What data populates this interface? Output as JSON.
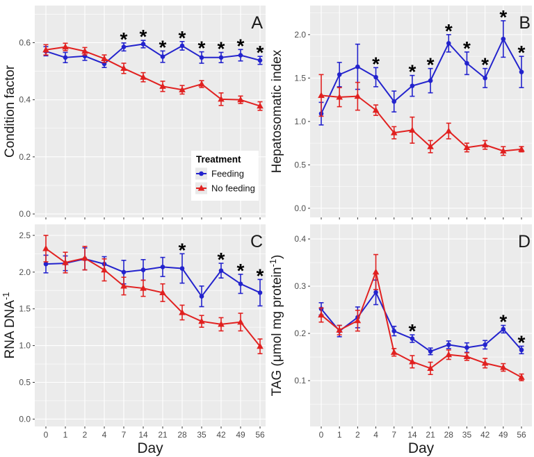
{
  "figure": {
    "background": "#ffffff",
    "panel_background": "#EBEBEB",
    "gridline_color": "#FFFFFF",
    "tick_color": "#333333",
    "tick_label_color": "#4D4D4D",
    "text_color": "#1A1A1A",
    "significance_marker": "*",
    "x_axis": {
      "label": "Day",
      "categories": [
        "0",
        "1",
        "2",
        "4",
        "7",
        "14",
        "21",
        "28",
        "35",
        "42",
        "49",
        "56"
      ]
    },
    "legend": {
      "title": "Treatment",
      "location": "inside panel A, lower right",
      "entries": [
        {
          "label": "Feeding",
          "color": "#2323CD",
          "marker": "circle"
        },
        {
          "label": "No feeding",
          "color": "#E12120",
          "marker": "triangle"
        }
      ]
    }
  },
  "chart_data": [
    {
      "type": "line",
      "panel_label": "A",
      "ylabel": "Condition factor",
      "xlabel": "Day",
      "x_categories": [
        "0",
        "1",
        "2",
        "4",
        "7",
        "14",
        "21",
        "28",
        "35",
        "42",
        "49",
        "56"
      ],
      "ylim": [
        -0.012,
        0.73
      ],
      "yticks": [
        0.0,
        0.2,
        0.4,
        0.6
      ],
      "ytick_labels": [
        "0.0",
        "0.2",
        "0.4",
        "0.6"
      ],
      "yminor": [
        0.1,
        0.3,
        0.5,
        0.7
      ],
      "grid": true,
      "series": [
        {
          "name": "Feeding",
          "values": [
            0.57,
            0.548,
            0.553,
            0.526,
            0.585,
            0.595,
            0.551,
            0.589,
            0.548,
            0.548,
            0.556,
            0.538
          ],
          "errors": [
            0.016,
            0.018,
            0.015,
            0.013,
            0.014,
            0.013,
            0.02,
            0.015,
            0.02,
            0.018,
            0.02,
            0.014
          ]
        },
        {
          "name": "No feeding",
          "values": [
            0.575,
            0.585,
            0.57,
            0.544,
            0.51,
            0.479,
            0.447,
            0.435,
            0.455,
            0.402,
            0.4,
            0.378
          ],
          "errors": [
            0.018,
            0.013,
            0.013,
            0.013,
            0.018,
            0.016,
            0.018,
            0.015,
            0.012,
            0.022,
            0.013,
            0.015
          ]
        }
      ],
      "significant_days": [
        "7",
        "14",
        "21",
        "28",
        "35",
        "42",
        "49",
        "56"
      ]
    },
    {
      "type": "line",
      "panel_label": "B",
      "ylabel": "Hepatosomatic index",
      "xlabel": "Day",
      "x_categories": [
        "0",
        "1",
        "2",
        "4",
        "7",
        "14",
        "21",
        "28",
        "35",
        "42",
        "49",
        "56"
      ],
      "ylim": [
        -0.105,
        2.335
      ],
      "yticks": [
        0.0,
        0.5,
        1.0,
        1.5,
        2.0
      ],
      "ytick_labels": [
        "0.0",
        "0.5",
        "1.0",
        "1.5",
        "2.0"
      ],
      "yminor": [
        0.25,
        0.75,
        1.25,
        1.75,
        2.25
      ],
      "grid": true,
      "series": [
        {
          "name": "Feeding",
          "values": [
            1.09,
            1.54,
            1.63,
            1.51,
            1.23,
            1.41,
            1.47,
            1.9,
            1.67,
            1.5,
            1.95,
            1.57
          ],
          "errors": [
            0.13,
            0.14,
            0.26,
            0.11,
            0.12,
            0.12,
            0.14,
            0.1,
            0.13,
            0.11,
            0.21,
            0.18
          ]
        },
        {
          "name": "No feeding",
          "values": [
            1.3,
            1.28,
            1.29,
            1.13,
            0.87,
            0.9,
            0.71,
            0.89,
            0.7,
            0.73,
            0.66,
            0.68
          ],
          "errors": [
            0.24,
            0.11,
            0.16,
            0.06,
            0.07,
            0.15,
            0.07,
            0.09,
            0.05,
            0.05,
            0.05,
            0.03
          ]
        }
      ],
      "significant_days": [
        "4",
        "14",
        "21",
        "28",
        "35",
        "42",
        "49",
        "56"
      ]
    },
    {
      "type": "line",
      "panel_label": "C",
      "ylabel": "RNA DNA⁻¹",
      "xlabel": "Day",
      "x_categories": [
        "0",
        "1",
        "2",
        "4",
        "7",
        "14",
        "21",
        "28",
        "35",
        "42",
        "49",
        "56"
      ],
      "ylim": [
        -0.1,
        2.65
      ],
      "yticks": [
        0.0,
        0.5,
        1.0,
        1.5,
        2.0,
        2.5
      ],
      "ytick_labels": [
        "0.0",
        "0.5",
        "1.0",
        "1.5",
        "2.0",
        "2.5"
      ],
      "yminor": [
        0.25,
        0.75,
        1.25,
        1.75,
        2.25
      ],
      "grid": true,
      "series": [
        {
          "name": "Feeding",
          "values": [
            2.11,
            2.12,
            2.18,
            2.11,
            2.0,
            2.03,
            2.07,
            2.05,
            1.67,
            2.02,
            1.84,
            1.72
          ],
          "errors": [
            0.12,
            0.1,
            0.15,
            0.1,
            0.16,
            0.14,
            0.13,
            0.2,
            0.14,
            0.1,
            0.13,
            0.18
          ]
        },
        {
          "name": "No feeding",
          "values": [
            2.32,
            2.13,
            2.19,
            2.03,
            1.81,
            1.78,
            1.72,
            1.45,
            1.33,
            1.29,
            1.32,
            0.99
          ],
          "errors": [
            0.18,
            0.14,
            0.16,
            0.15,
            0.12,
            0.11,
            0.12,
            0.1,
            0.08,
            0.09,
            0.12,
            0.1
          ]
        }
      ],
      "significant_days": [
        "28",
        "42",
        "49",
        "56"
      ]
    },
    {
      "type": "line",
      "panel_label": "D",
      "ylabel": "TAG (μmol mg protein⁻¹)",
      "xlabel": "Day",
      "x_categories": [
        "0",
        "1",
        "2",
        "4",
        "7",
        "14",
        "21",
        "28",
        "35",
        "42",
        "49",
        "56"
      ],
      "ylim": [
        0.003,
        0.431
      ],
      "yticks": [
        0.1,
        0.2,
        0.3,
        0.4
      ],
      "ytick_labels": [
        "0.1",
        "0.2",
        "0.3",
        "0.4"
      ],
      "yminor": [
        0.05,
        0.15,
        0.25,
        0.35
      ],
      "grid": true,
      "series": [
        {
          "name": "Feeding",
          "values": [
            0.252,
            0.205,
            0.234,
            0.287,
            0.205,
            0.189,
            0.162,
            0.176,
            0.17,
            0.176,
            0.209,
            0.165
          ],
          "errors": [
            0.013,
            0.012,
            0.022,
            0.026,
            0.01,
            0.008,
            0.007,
            0.008,
            0.01,
            0.009,
            0.008,
            0.008
          ]
        },
        {
          "name": "No feeding",
          "values": [
            0.239,
            0.207,
            0.227,
            0.33,
            0.16,
            0.14,
            0.126,
            0.155,
            0.151,
            0.137,
            0.128,
            0.107
          ],
          "errors": [
            0.015,
            0.01,
            0.022,
            0.037,
            0.008,
            0.013,
            0.013,
            0.01,
            0.008,
            0.01,
            0.008,
            0.007
          ]
        }
      ],
      "significant_days": [
        "14",
        "49",
        "56"
      ]
    }
  ]
}
